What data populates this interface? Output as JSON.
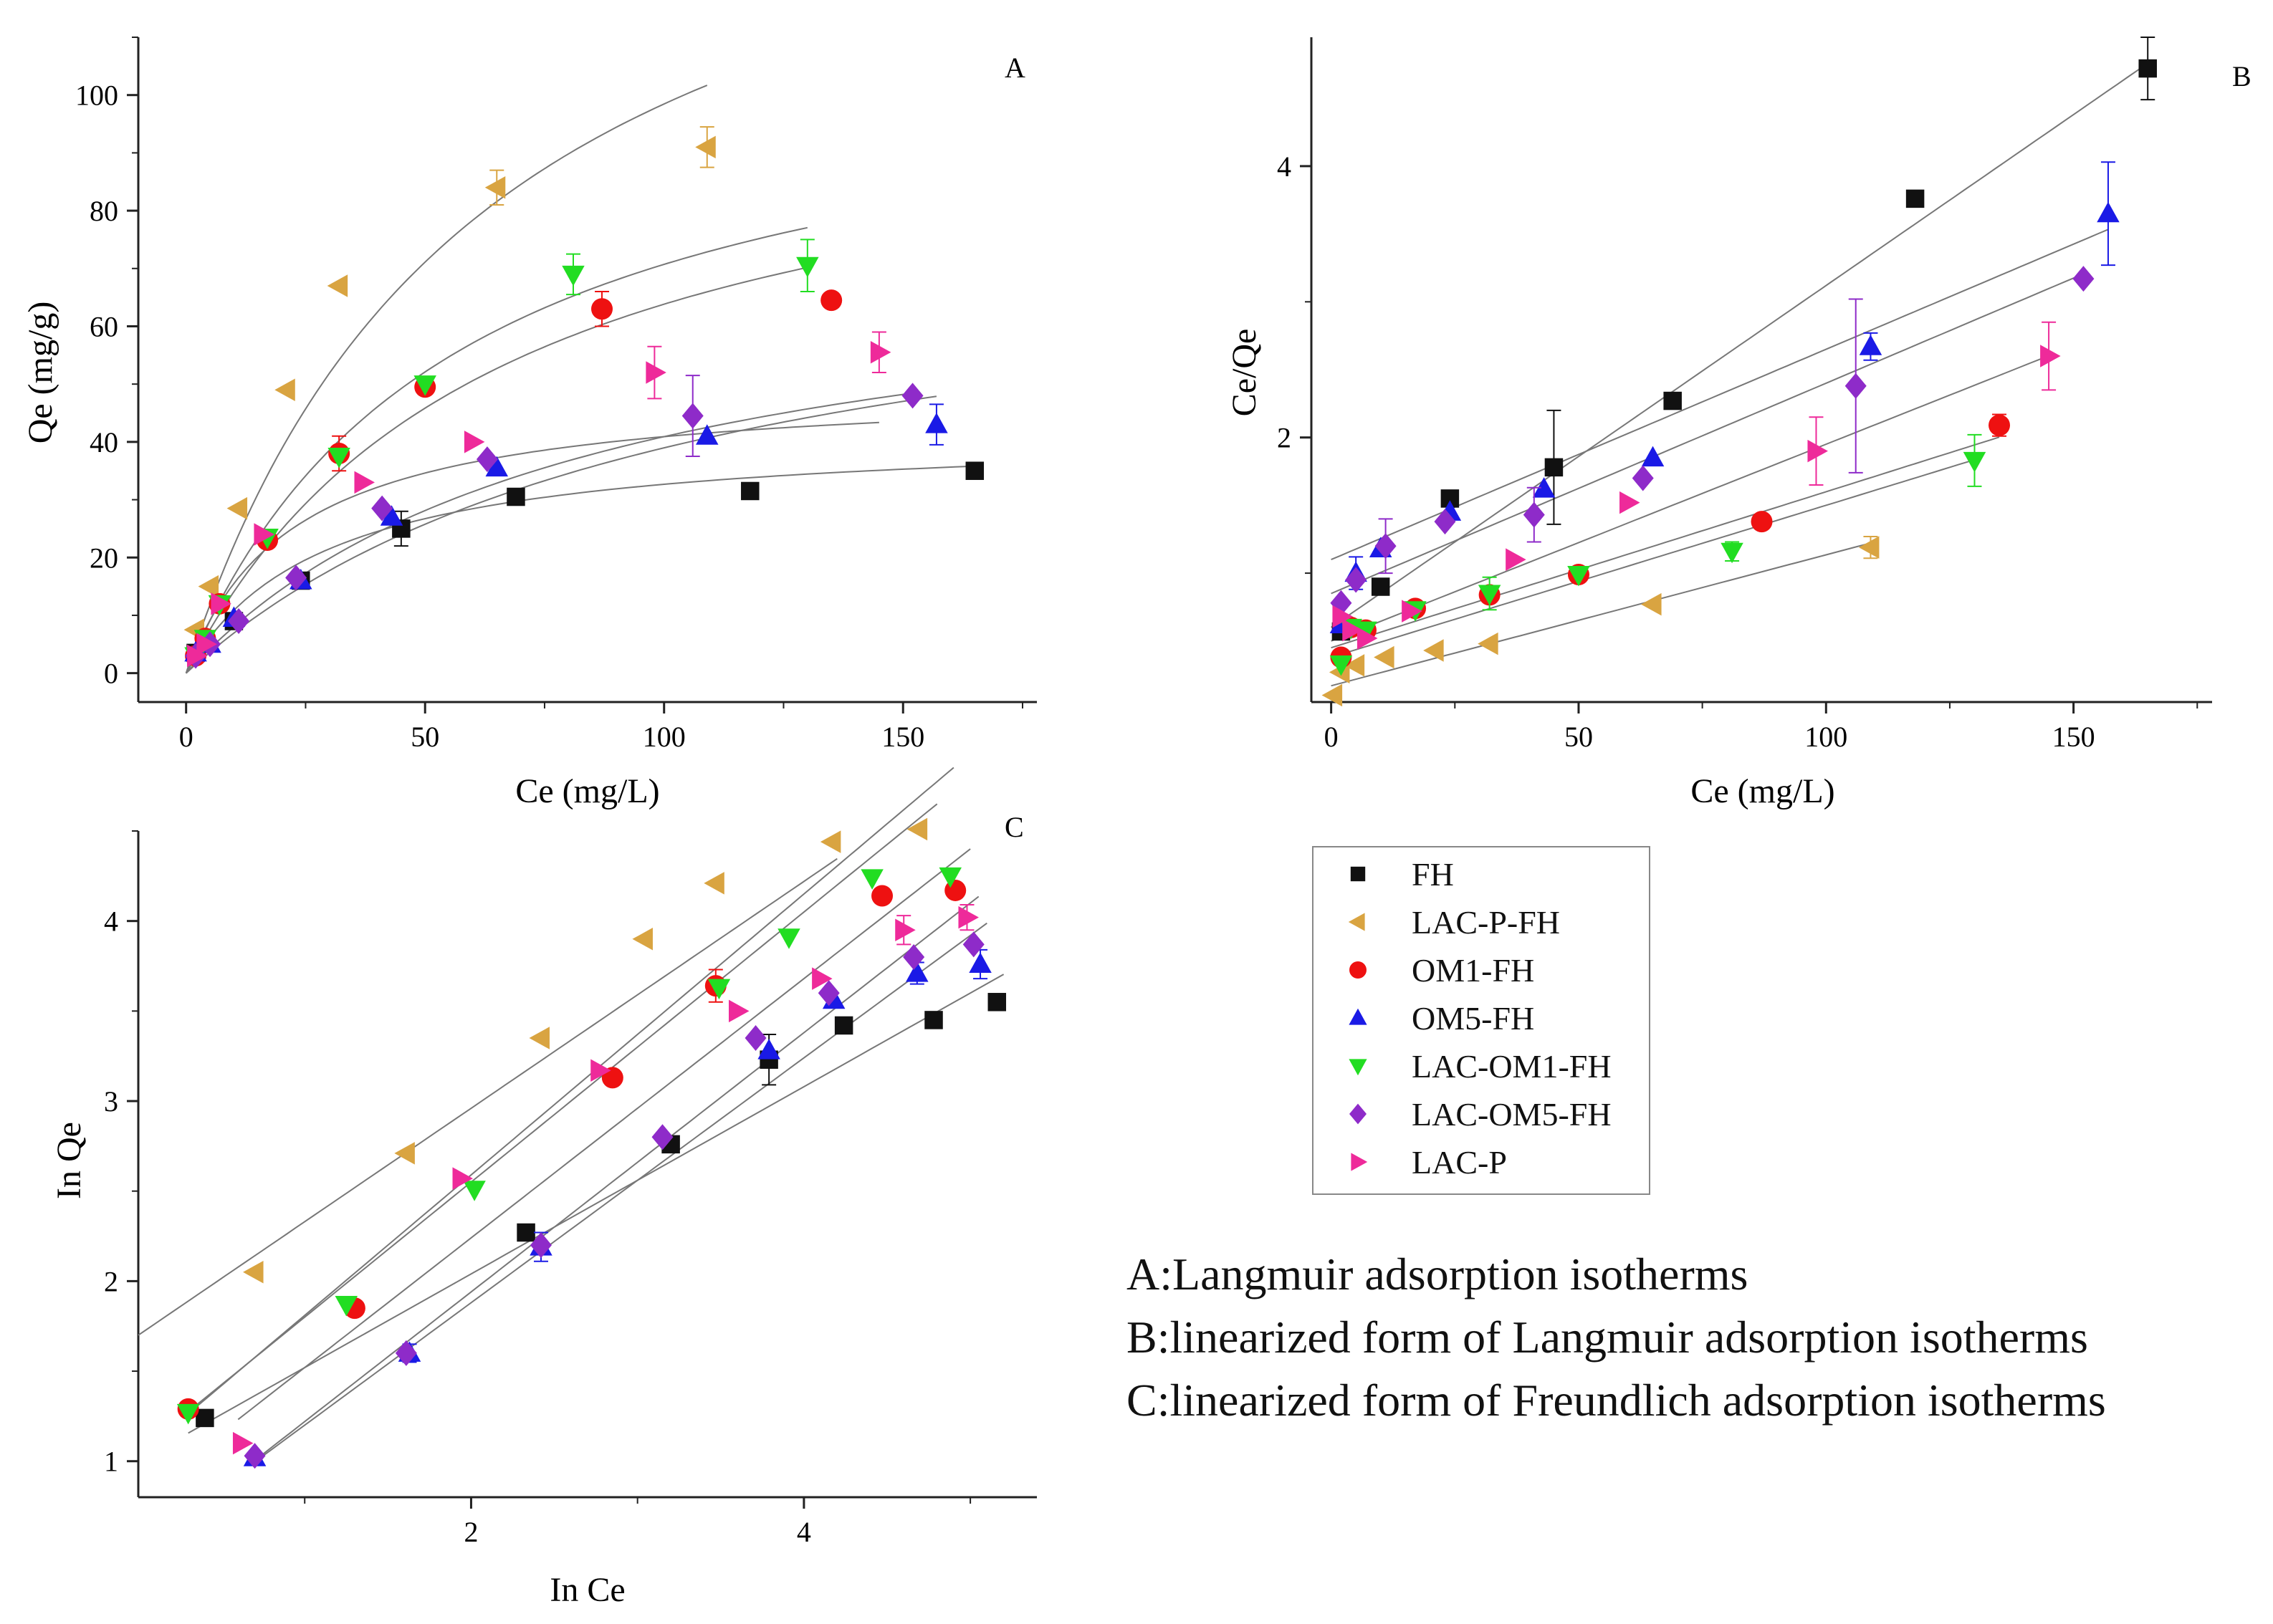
{
  "series_styles": [
    {
      "name": "FH",
      "color": "#111111",
      "marker": "square"
    },
    {
      "name": "LAC-P-FH",
      "color": "#d9a441",
      "marker": "triangle-left"
    },
    {
      "name": "OM1-FH",
      "color": "#ee1111",
      "marker": "circle"
    },
    {
      "name": "OM5-FH",
      "color": "#1a1ae6",
      "marker": "triangle-up"
    },
    {
      "name": "LAC-OM1-FH",
      "color": "#22dd22",
      "marker": "triangle-down"
    },
    {
      "name": "LAC-OM5-FH",
      "color": "#8e2bc9",
      "marker": "diamond"
    },
    {
      "name": "LAC-P",
      "color": "#ee2a9a",
      "marker": "triangle-right"
    }
  ],
  "legend": {
    "entries": [
      "FH",
      "LAC-P-FH",
      "OM1-FH",
      "OM5-FH",
      "LAC-OM1-FH",
      "LAC-OM5-FH",
      "LAC-P"
    ]
  },
  "captions": [
    "A:Langmuir adsorption isotherms",
    "B:linearized form of Langmuir adsorption isotherms",
    "C:linearized form of Freundlich adsorption isotherms"
  ],
  "chart_data": [
    {
      "type": "scatter",
      "panel": "A",
      "xlabel": "Ce (mg/L)",
      "ylabel": "Qe (mg/g)",
      "xlim": [
        -10,
        178
      ],
      "ylim": [
        -5,
        110
      ],
      "xticks": [
        0,
        50,
        100,
        150
      ],
      "yticks": [
        0,
        20,
        40,
        60,
        80,
        100
      ],
      "grid": false,
      "series": [
        {
          "name": "FH",
          "x": [
            2,
            10,
            24,
            45,
            69,
            118,
            165
          ],
          "y": [
            3.5,
            9,
            16,
            25,
            30.5,
            31.5,
            35
          ],
          "err": [
            0,
            0,
            0,
            3,
            0,
            0,
            0
          ],
          "fit": {
            "model": "langmuir",
            "qmax": 42,
            "kl": 0.035,
            "xmin": 0,
            "xmax": 165
          }
        },
        {
          "name": "LAC-P-FH",
          "x": [
            2,
            5,
            11,
            21,
            32,
            65,
            109
          ],
          "y": [
            7.5,
            15,
            28.5,
            49,
            67,
            84,
            91
          ],
          "err": [
            0,
            0,
            0,
            0,
            0,
            3,
            3.5
          ],
          "fit": {
            "model": "langmuir",
            "qmax": 160,
            "kl": 0.016,
            "xmin": 0,
            "xmax": 109
          }
        },
        {
          "name": "OM1-FH",
          "x": [
            2,
            4,
            7,
            17,
            32,
            50,
            87,
            135
          ],
          "y": [
            3,
            6,
            12,
            23,
            38,
            49.5,
            63,
            64.5
          ],
          "err": [
            0,
            0,
            0,
            0,
            3,
            0,
            3,
            0
          ],
          "fit": {
            "model": "langmuir",
            "qmax": 110,
            "kl": 0.018,
            "xmin": 0,
            "xmax": 130
          }
        },
        {
          "name": "OM5-FH",
          "x": [
            2,
            5,
            10,
            24,
            43,
            65,
            109,
            157
          ],
          "y": [
            3.5,
            5,
            9.5,
            16,
            27,
            35.5,
            41,
            43
          ],
          "err": [
            0,
            0,
            0,
            0,
            0,
            0,
            0,
            3.5
          ],
          "fit": {
            "model": "langmuir",
            "qmax": 80,
            "kl": 0.0095,
            "xmin": 0,
            "xmax": 157
          }
        },
        {
          "name": "LAC-OM1-FH",
          "x": [
            2,
            4,
            7,
            17,
            32,
            50,
            81,
            130
          ],
          "y": [
            3,
            6,
            12,
            23.5,
            37.5,
            50,
            69,
            70.5
          ],
          "err": [
            0,
            0,
            0,
            0,
            0,
            0,
            3.5,
            4.5
          ],
          "fit": {
            "model": "langmuir",
            "qmax": 105,
            "kl": 0.0155,
            "xmin": 0,
            "xmax": 130
          }
        },
        {
          "name": "LAC-OM5-FH",
          "x": [
            2,
            5,
            11,
            23,
            41,
            63,
            106,
            152
          ],
          "y": [
            3,
            5,
            9,
            16.5,
            28.5,
            37,
            44.5,
            48
          ],
          "err": [
            0,
            0,
            0,
            0,
            0,
            0,
            7,
            0
          ],
          "fit": {
            "model": "langmuir",
            "qmax": 75,
            "kl": 0.012,
            "xmin": 0,
            "xmax": 152
          }
        },
        {
          "name": "LAC-P",
          "x": [
            2,
            4,
            7,
            16,
            37,
            60,
            98,
            145
          ],
          "y": [
            3,
            5,
            12,
            24,
            33,
            40,
            52,
            55.5
          ],
          "err": [
            0,
            0,
            0,
            0,
            0,
            0,
            4.5,
            3.5
          ],
          "fit": {
            "model": "langmuir",
            "qmax": 50,
            "kl": 0.045,
            "xmin": 0,
            "xmax": 145
          }
        }
      ]
    },
    {
      "type": "scatter",
      "panel": "B",
      "xlabel": "Ce (mg/L)",
      "ylabel": "Ce/Qe",
      "xlim": [
        -4,
        178
      ],
      "ylim": [
        0.05,
        4.95
      ],
      "xticks": [
        0,
        50,
        100,
        150
      ],
      "yticks": [
        2,
        4
      ],
      "grid": false,
      "series": [
        {
          "name": "FH",
          "x": [
            2,
            10,
            24,
            45,
            69,
            118,
            165
          ],
          "y": [
            0.57,
            0.9,
            1.55,
            1.78,
            2.27,
            3.76,
            4.72
          ],
          "err": [
            0,
            0,
            0,
            0.42,
            0,
            0,
            0.23
          ],
          "fit": {
            "model": "line",
            "slope": 0.0252,
            "intercept": 0.6,
            "xmin": 0,
            "xmax": 165
          }
        },
        {
          "name": "LAC-P-FH",
          "x": [
            0.5,
            2,
            5,
            11,
            21,
            32,
            65,
            109
          ],
          "y": [
            0.1,
            0.27,
            0.32,
            0.38,
            0.43,
            0.48,
            0.77,
            1.19
          ],
          "err": [
            0,
            0,
            0,
            0,
            0,
            0,
            0,
            0.08
          ],
          "fit": {
            "model": "line",
            "slope": 0.00965,
            "intercept": 0.17,
            "xmin": 0,
            "xmax": 109
          }
        },
        {
          "name": "OM1-FH",
          "x": [
            2,
            4,
            7,
            17,
            32,
            50,
            87,
            135
          ],
          "y": [
            0.38,
            0.6,
            0.58,
            0.74,
            0.84,
            0.99,
            1.38,
            2.09
          ],
          "err": [
            0,
            0,
            0,
            0,
            0,
            0,
            0,
            0.08
          ],
          "fit": {
            "model": "line",
            "slope": 0.0115,
            "intercept": 0.45,
            "xmin": 0,
            "xmax": 135
          }
        },
        {
          "name": "OM5-FH",
          "x": [
            2,
            5,
            10,
            24,
            43,
            65,
            109,
            157
          ],
          "y": [
            0.62,
            1,
            1.18,
            1.45,
            1.62,
            1.85,
            2.67,
            3.65
          ],
          "err": [
            0,
            0.12,
            0,
            0,
            0,
            0,
            0.1,
            0.38
          ],
          "fit": {
            "model": "line",
            "slope": 0.0155,
            "intercept": 1.1,
            "xmin": 0,
            "xmax": 157
          }
        },
        {
          "name": "LAC-OM1-FH",
          "x": [
            2,
            4,
            7,
            17,
            32,
            50,
            81,
            130
          ],
          "y": [
            0.33,
            0.6,
            0.58,
            0.73,
            0.85,
            0.99,
            1.16,
            1.83
          ],
          "err": [
            0,
            0,
            0,
            0,
            0.12,
            0,
            0.07,
            0.19
          ],
          "fit": {
            "model": "line",
            "slope": 0.0112,
            "intercept": 0.38,
            "xmin": 0,
            "xmax": 130
          }
        },
        {
          "name": "LAC-OM5-FH",
          "x": [
            2,
            5,
            11,
            23,
            41,
            63,
            106,
            152
          ],
          "y": [
            0.78,
            0.95,
            1.2,
            1.38,
            1.43,
            1.7,
            2.38,
            3.17
          ],
          "err": [
            0,
            0,
            0.2,
            0,
            0.2,
            0,
            0.64,
            0
          ],
          "fit": {
            "model": "line",
            "slope": 0.0155,
            "intercept": 0.85,
            "xmin": 0,
            "xmax": 152
          }
        },
        {
          "name": "LAC-P",
          "x": [
            2,
            4,
            7,
            16,
            37,
            60,
            98,
            145
          ],
          "y": [
            0.68,
            0.58,
            0.52,
            0.72,
            1.1,
            1.52,
            1.9,
            2.6
          ],
          "err": [
            0,
            0,
            0,
            0,
            0,
            0,
            0.25,
            0.25
          ],
          "fit": {
            "model": "line",
            "slope": 0.0145,
            "intercept": 0.5,
            "xmin": 0,
            "xmax": 145
          }
        }
      ]
    },
    {
      "type": "scatter",
      "panel": "C",
      "xlabel": "In Ce",
      "ylabel": "In Qe",
      "xlim": [
        0,
        5.4
      ],
      "ylim": [
        0.8,
        4.5
      ],
      "xticks": [
        2,
        4
      ],
      "yticks": [
        1,
        2,
        3,
        4
      ],
      "grid": false,
      "series": [
        {
          "name": "FH",
          "x": [
            0.4,
            2.33,
            3.2,
            3.79,
            4.24,
            4.78,
            5.16
          ],
          "y": [
            1.24,
            2.27,
            2.76,
            3.23,
            3.42,
            3.45,
            3.55
          ],
          "err": [
            0,
            0,
            0,
            0.14,
            0,
            0,
            0
          ],
          "fit": {
            "model": "line",
            "slope": 0.52,
            "intercept": 1.0,
            "xmin": 0.3,
            "xmax": 5.2
          }
        },
        {
          "name": "LAC-P-FH",
          "x": [
            0.7,
            1.61,
            2.42,
            3.04,
            3.47,
            4.17,
            4.69
          ],
          "y": [
            2.05,
            2.71,
            3.35,
            3.9,
            4.21,
            4.44,
            4.51
          ],
          "err": [
            0,
            0,
            0,
            0,
            0,
            0,
            0
          ],
          "fit": {
            "model": "line",
            "slope": 0.63,
            "intercept": 1.7,
            "xmin": 0,
            "xmax": 4.2
          }
        },
        {
          "name": "OM1-FH",
          "x": [
            0.3,
            1.3,
            2.85,
            3.47,
            4.47,
            4.91
          ],
          "y": [
            1.29,
            1.85,
            3.13,
            3.64,
            4.14,
            4.17
          ],
          "err": [
            0,
            0,
            0,
            0.09,
            0,
            0
          ],
          "fit": {
            "model": "line",
            "slope": 0.75,
            "intercept": 1.05,
            "xmin": 0.3,
            "xmax": 4.8
          }
        },
        {
          "name": "OM5-FH",
          "x": [
            0.7,
            1.63,
            2.42,
            3.79,
            4.18,
            4.68,
            5.06
          ],
          "y": [
            1.02,
            1.6,
            2.19,
            3.28,
            3.56,
            3.71,
            3.76
          ],
          "err": [
            0,
            0.05,
            0.08,
            0,
            0,
            0.06,
            0.08
          ],
          "fit": {
            "model": "line",
            "slope": 0.68,
            "intercept": 0.52,
            "xmin": 0.7,
            "xmax": 5.1
          }
        },
        {
          "name": "LAC-OM1-FH",
          "x": [
            0.3,
            1.25,
            2.02,
            3.49,
            3.91,
            4.41,
            4.88
          ],
          "y": [
            1.27,
            1.87,
            2.51,
            3.63,
            3.91,
            4.24,
            4.25
          ],
          "err": [
            0,
            0,
            0,
            0,
            0,
            0,
            0
          ],
          "fit": {
            "model": "line",
            "slope": 0.78,
            "intercept": 1.03,
            "xmin": 0.3,
            "xmax": 4.9
          }
        },
        {
          "name": "LAC-OM5-FH",
          "x": [
            0.7,
            1.61,
            2.42,
            3.15,
            3.71,
            4.15,
            4.66,
            5.02
          ],
          "y": [
            1.03,
            1.6,
            2.2,
            2.8,
            3.35,
            3.6,
            3.8,
            3.87
          ],
          "err": [
            0,
            0,
            0,
            0,
            0,
            0,
            0,
            0
          ],
          "fit": {
            "model": "line",
            "slope": 0.72,
            "intercept": 0.5,
            "xmin": 0.7,
            "xmax": 5.05
          }
        },
        {
          "name": "LAC-P",
          "x": [
            0.62,
            1.94,
            2.77,
            3.6,
            4.1,
            4.6,
            4.98
          ],
          "y": [
            1.1,
            2.57,
            3.17,
            3.5,
            3.68,
            3.95,
            4.02
          ],
          "err": [
            0,
            0,
            0,
            0,
            0,
            0.08,
            0.07
          ],
          "fit": {
            "model": "line",
            "slope": 0.72,
            "intercept": 0.8,
            "xmin": 0.6,
            "xmax": 5.0
          }
        }
      ]
    }
  ]
}
